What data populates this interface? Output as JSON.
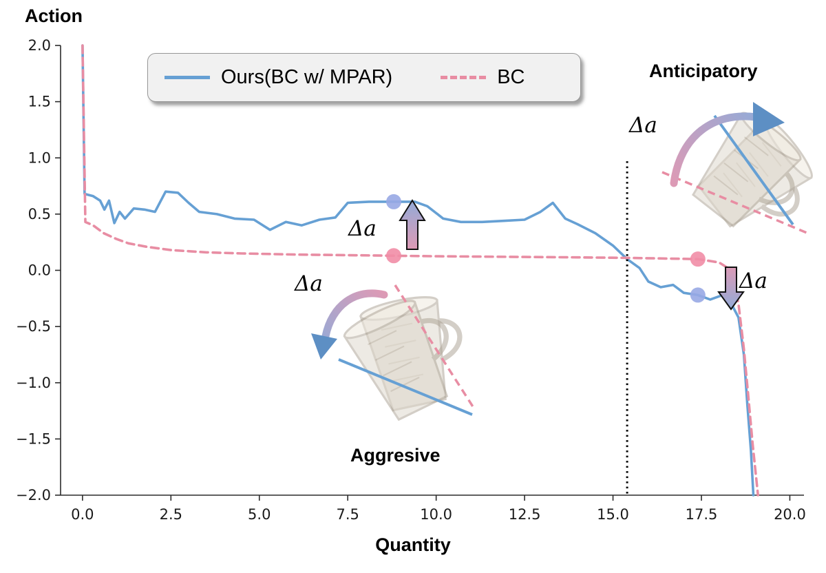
{
  "palette": {
    "blue": "#66a0d4",
    "pink": "#e88da3",
    "dot_blue": "#98a8e4",
    "dot_pink": "#f18da6",
    "arrow_pink": "#dd9ab5",
    "arrow_blue": "#92abd8",
    "arrow_head_blue": "#5d8fc4",
    "vline_color": "#000000"
  },
  "legend": {
    "items": [
      {
        "label": "Ours(BC w/ MPAR)",
        "color": "#66a0d4",
        "style": "solid"
      },
      {
        "label": "BC",
        "color": "#e88da3",
        "style": "dashed"
      }
    ]
  },
  "annotations": {
    "anticipatory": "Anticipatory",
    "aggressive": "Aggresive",
    "delta_a": "Δa"
  },
  "chart_data": {
    "type": "line",
    "title": "",
    "xlabel": "Quantity",
    "ylabel": "Action",
    "xlim": [
      -0.62,
      20.4
    ],
    "ylim": [
      -2.0,
      2.0
    ],
    "xticks": [
      0.0,
      2.5,
      5.0,
      7.5,
      10.0,
      12.5,
      15.0,
      17.5,
      20.0
    ],
    "xtick_labels": [
      "0.0",
      "2.5",
      "5.0",
      "7.5",
      "10.0",
      "12.5",
      "15.0",
      "17.5",
      "20.0"
    ],
    "yticks": [
      -2.0,
      -1.5,
      -1.0,
      -0.5,
      0.0,
      0.5,
      1.0,
      1.5,
      2.0
    ],
    "ytick_labels": [
      "−2.0",
      "−1.5",
      "−1.0",
      "−0.5",
      "0.0",
      "0.5",
      "1.0",
      "1.5",
      "2.0"
    ],
    "grid": false,
    "legend_position": "upper left",
    "vline": {
      "x": 15.4,
      "y_from": 0.97,
      "y_to": -2.0,
      "style": "dotted",
      "color": "#000000"
    },
    "series": [
      {
        "id": "ours",
        "name": "Ours(BC w/ MPAR)",
        "color": "#66a0d4",
        "style": "solid",
        "points": [
          [
            0.0,
            2.0
          ],
          [
            0.06,
            0.68
          ],
          [
            0.3,
            0.66
          ],
          [
            0.5,
            0.62
          ],
          [
            0.62,
            0.54
          ],
          [
            0.75,
            0.62
          ],
          [
            0.9,
            0.42
          ],
          [
            1.05,
            0.52
          ],
          [
            1.2,
            0.46
          ],
          [
            1.45,
            0.55
          ],
          [
            1.75,
            0.54
          ],
          [
            2.05,
            0.52
          ],
          [
            2.35,
            0.7
          ],
          [
            2.7,
            0.69
          ],
          [
            3.0,
            0.6
          ],
          [
            3.3,
            0.52
          ],
          [
            3.8,
            0.5
          ],
          [
            4.3,
            0.46
          ],
          [
            4.85,
            0.45
          ],
          [
            5.3,
            0.36
          ],
          [
            5.75,
            0.43
          ],
          [
            6.2,
            0.4
          ],
          [
            6.7,
            0.45
          ],
          [
            7.15,
            0.47
          ],
          [
            7.5,
            0.6
          ],
          [
            8.1,
            0.61
          ],
          [
            8.8,
            0.61
          ],
          [
            9.4,
            0.61
          ],
          [
            9.75,
            0.57
          ],
          [
            10.2,
            0.46
          ],
          [
            10.7,
            0.43
          ],
          [
            11.3,
            0.43
          ],
          [
            11.9,
            0.44
          ],
          [
            12.5,
            0.45
          ],
          [
            12.95,
            0.52
          ],
          [
            13.3,
            0.6
          ],
          [
            13.65,
            0.46
          ],
          [
            14.0,
            0.41
          ],
          [
            14.5,
            0.33
          ],
          [
            15.0,
            0.22
          ],
          [
            15.4,
            0.1
          ],
          [
            15.75,
            0.02
          ],
          [
            16.0,
            -0.1
          ],
          [
            16.35,
            -0.15
          ],
          [
            16.7,
            -0.13
          ],
          [
            17.0,
            -0.2
          ],
          [
            17.4,
            -0.22
          ],
          [
            17.75,
            -0.26
          ],
          [
            18.1,
            -0.22
          ],
          [
            18.35,
            -0.3
          ],
          [
            18.55,
            -0.42
          ],
          [
            18.7,
            -0.75
          ],
          [
            18.8,
            -1.2
          ],
          [
            18.9,
            -1.6
          ],
          [
            18.97,
            -2.0
          ]
        ]
      },
      {
        "id": "bc",
        "name": "BC",
        "color": "#e88da3",
        "style": "dashed",
        "points": [
          [
            0.0,
            2.0
          ],
          [
            0.08,
            0.43
          ],
          [
            0.3,
            0.4
          ],
          [
            0.6,
            0.33
          ],
          [
            0.95,
            0.28
          ],
          [
            1.3,
            0.24
          ],
          [
            1.8,
            0.21
          ],
          [
            2.5,
            0.18
          ],
          [
            3.5,
            0.16
          ],
          [
            4.5,
            0.15
          ],
          [
            6.0,
            0.14
          ],
          [
            7.5,
            0.135
          ],
          [
            8.8,
            0.13
          ],
          [
            10.0,
            0.125
          ],
          [
            12.0,
            0.12
          ],
          [
            14.0,
            0.115
          ],
          [
            15.5,
            0.11
          ],
          [
            16.5,
            0.105
          ],
          [
            17.4,
            0.1
          ],
          [
            18.0,
            0.07
          ],
          [
            18.35,
            0.0
          ],
          [
            18.55,
            -0.3
          ],
          [
            18.7,
            -0.7
          ],
          [
            18.82,
            -1.1
          ],
          [
            18.95,
            -1.55
          ],
          [
            19.1,
            -2.0
          ]
        ]
      }
    ],
    "markers": [
      {
        "series": "ours",
        "x": 8.8,
        "y": 0.61,
        "color": "#98a8e4"
      },
      {
        "series": "bc",
        "x": 8.8,
        "y": 0.13,
        "color": "#f18da6"
      },
      {
        "series": "bc",
        "x": 17.4,
        "y": 0.1,
        "color": "#f18da6"
      },
      {
        "series": "ours",
        "x": 17.4,
        "y": -0.22,
        "color": "#98a8e4"
      }
    ]
  }
}
